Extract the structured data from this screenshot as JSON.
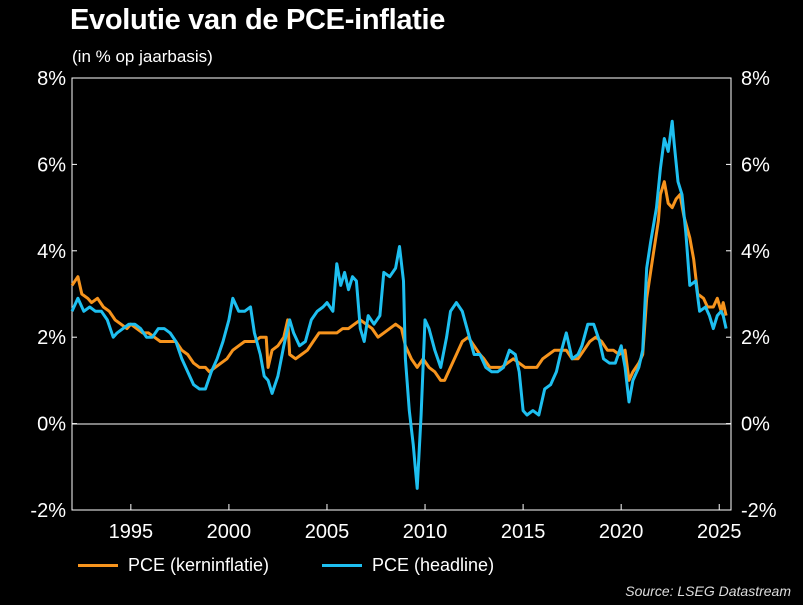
{
  "title": "Evolutie van de PCE-inflatie",
  "subtitle": "(in % op jaarbasis)",
  "source": "Source: LSEG Datastream",
  "colors": {
    "core": "#F7941D",
    "headline": "#1EBFF0",
    "background": "#000000",
    "zero_line": "#FFFFFF"
  },
  "chart_data": {
    "type": "line",
    "title": "Evolutie van de PCE-inflatie",
    "ylabel_left": "",
    "ylabel_right": "",
    "ylim": [
      -2,
      8
    ],
    "xlim": [
      1992.0,
      2025.6
    ],
    "y_ticks": [
      -2,
      0,
      2,
      4,
      6,
      8
    ],
    "y_tick_labels": [
      "-2%",
      "0%",
      "2%",
      "4%",
      "6%",
      "8%"
    ],
    "x_ticks": [
      1995,
      2000,
      2005,
      2010,
      2015,
      2020,
      2025
    ],
    "x_tick_labels": [
      "1995",
      "2000",
      "2005",
      "2010",
      "2015",
      "2020",
      "2025"
    ],
    "legend_position": "bottom-left",
    "grid": false,
    "series": [
      {
        "name": "PCE (kerninflatie)",
        "color": "#F7941D",
        "points": [
          [
            1992.0,
            3.2
          ],
          [
            1992.3,
            3.4
          ],
          [
            1992.5,
            3.0
          ],
          [
            1992.8,
            2.9
          ],
          [
            1993.0,
            2.8
          ],
          [
            1993.3,
            2.9
          ],
          [
            1993.6,
            2.7
          ],
          [
            1993.9,
            2.6
          ],
          [
            1994.2,
            2.4
          ],
          [
            1994.5,
            2.3
          ],
          [
            1994.8,
            2.2
          ],
          [
            1995.0,
            2.3
          ],
          [
            1995.3,
            2.2
          ],
          [
            1995.6,
            2.1
          ],
          [
            1995.9,
            2.1
          ],
          [
            1996.2,
            2.0
          ],
          [
            1996.5,
            1.9
          ],
          [
            1996.8,
            1.9
          ],
          [
            1997.0,
            1.9
          ],
          [
            1997.3,
            1.9
          ],
          [
            1997.6,
            1.7
          ],
          [
            1997.9,
            1.6
          ],
          [
            1998.2,
            1.4
          ],
          [
            1998.5,
            1.3
          ],
          [
            1998.8,
            1.3
          ],
          [
            1999.0,
            1.2
          ],
          [
            1999.3,
            1.3
          ],
          [
            1999.6,
            1.4
          ],
          [
            1999.9,
            1.5
          ],
          [
            2000.2,
            1.7
          ],
          [
            2000.5,
            1.8
          ],
          [
            2000.8,
            1.9
          ],
          [
            2001.0,
            1.9
          ],
          [
            2001.3,
            1.9
          ],
          [
            2001.6,
            2.0
          ],
          [
            2001.9,
            2.0
          ],
          [
            2002.0,
            1.3
          ],
          [
            2002.2,
            1.7
          ],
          [
            2002.5,
            1.8
          ],
          [
            2002.8,
            2.0
          ],
          [
            2003.0,
            2.4
          ],
          [
            2003.1,
            1.6
          ],
          [
            2003.4,
            1.5
          ],
          [
            2003.7,
            1.6
          ],
          [
            2004.0,
            1.7
          ],
          [
            2004.3,
            1.9
          ],
          [
            2004.6,
            2.1
          ],
          [
            2004.9,
            2.1
          ],
          [
            2005.2,
            2.1
          ],
          [
            2005.5,
            2.1
          ],
          [
            2005.8,
            2.2
          ],
          [
            2006.1,
            2.2
          ],
          [
            2006.4,
            2.3
          ],
          [
            2006.7,
            2.4
          ],
          [
            2007.0,
            2.3
          ],
          [
            2007.3,
            2.2
          ],
          [
            2007.6,
            2.0
          ],
          [
            2007.9,
            2.1
          ],
          [
            2008.2,
            2.2
          ],
          [
            2008.5,
            2.3
          ],
          [
            2008.8,
            2.2
          ],
          [
            2009.0,
            1.8
          ],
          [
            2009.3,
            1.5
          ],
          [
            2009.6,
            1.3
          ],
          [
            2009.9,
            1.5
          ],
          [
            2010.2,
            1.3
          ],
          [
            2010.5,
            1.2
          ],
          [
            2010.8,
            1.0
          ],
          [
            2011.0,
            1.0
          ],
          [
            2011.3,
            1.3
          ],
          [
            2011.6,
            1.6
          ],
          [
            2011.9,
            1.9
          ],
          [
            2012.2,
            2.0
          ],
          [
            2012.5,
            1.8
          ],
          [
            2012.8,
            1.6
          ],
          [
            2013.0,
            1.5
          ],
          [
            2013.3,
            1.3
          ],
          [
            2013.6,
            1.3
          ],
          [
            2013.9,
            1.3
          ],
          [
            2014.2,
            1.4
          ],
          [
            2014.5,
            1.5
          ],
          [
            2014.8,
            1.4
          ],
          [
            2015.1,
            1.3
          ],
          [
            2015.4,
            1.3
          ],
          [
            2015.7,
            1.3
          ],
          [
            2016.0,
            1.5
          ],
          [
            2016.3,
            1.6
          ],
          [
            2016.6,
            1.7
          ],
          [
            2016.9,
            1.7
          ],
          [
            2017.2,
            1.7
          ],
          [
            2017.5,
            1.5
          ],
          [
            2017.8,
            1.5
          ],
          [
            2018.1,
            1.7
          ],
          [
            2018.4,
            1.9
          ],
          [
            2018.7,
            2.0
          ],
          [
            2019.0,
            1.9
          ],
          [
            2019.3,
            1.7
          ],
          [
            2019.6,
            1.7
          ],
          [
            2019.9,
            1.6
          ],
          [
            2020.2,
            1.7
          ],
          [
            2020.4,
            1.0
          ],
          [
            2020.6,
            1.2
          ],
          [
            2020.9,
            1.4
          ],
          [
            2021.1,
            1.6
          ],
          [
            2021.3,
            2.9
          ],
          [
            2021.6,
            3.8
          ],
          [
            2021.9,
            4.7
          ],
          [
            2022.0,
            5.3
          ],
          [
            2022.2,
            5.6
          ],
          [
            2022.4,
            5.1
          ],
          [
            2022.6,
            5.0
          ],
          [
            2022.8,
            5.2
          ],
          [
            2023.0,
            5.3
          ],
          [
            2023.2,
            4.8
          ],
          [
            2023.5,
            4.3
          ],
          [
            2023.7,
            3.8
          ],
          [
            2023.9,
            3.0
          ],
          [
            2024.2,
            2.9
          ],
          [
            2024.4,
            2.7
          ],
          [
            2024.7,
            2.7
          ],
          [
            2024.9,
            2.9
          ],
          [
            2025.1,
            2.6
          ],
          [
            2025.2,
            2.8
          ],
          [
            2025.35,
            2.5
          ]
        ]
      },
      {
        "name": "PCE (headline)",
        "color": "#1EBFF0",
        "points": [
          [
            1992.0,
            2.6
          ],
          [
            1992.3,
            2.9
          ],
          [
            1992.6,
            2.6
          ],
          [
            1992.9,
            2.7
          ],
          [
            1993.2,
            2.6
          ],
          [
            1993.5,
            2.6
          ],
          [
            1993.8,
            2.4
          ],
          [
            1994.1,
            2.0
          ],
          [
            1994.3,
            2.1
          ],
          [
            1994.6,
            2.2
          ],
          [
            1994.9,
            2.3
          ],
          [
            1995.2,
            2.3
          ],
          [
            1995.5,
            2.2
          ],
          [
            1995.8,
            2.0
          ],
          [
            1996.1,
            2.0
          ],
          [
            1996.4,
            2.2
          ],
          [
            1996.7,
            2.2
          ],
          [
            1997.0,
            2.1
          ],
          [
            1997.3,
            1.9
          ],
          [
            1997.6,
            1.5
          ],
          [
            1997.9,
            1.2
          ],
          [
            1998.2,
            0.9
          ],
          [
            1998.5,
            0.8
          ],
          [
            1998.8,
            0.8
          ],
          [
            1999.1,
            1.2
          ],
          [
            1999.4,
            1.5
          ],
          [
            1999.7,
            1.9
          ],
          [
            2000.0,
            2.4
          ],
          [
            2000.2,
            2.9
          ],
          [
            2000.5,
            2.6
          ],
          [
            2000.8,
            2.6
          ],
          [
            2001.1,
            2.7
          ],
          [
            2001.3,
            2.1
          ],
          [
            2001.6,
            1.6
          ],
          [
            2001.8,
            1.1
          ],
          [
            2002.0,
            1.0
          ],
          [
            2002.2,
            0.7
          ],
          [
            2002.5,
            1.1
          ],
          [
            2002.8,
            1.8
          ],
          [
            2003.1,
            2.4
          ],
          [
            2003.3,
            2.1
          ],
          [
            2003.6,
            1.8
          ],
          [
            2003.9,
            1.9
          ],
          [
            2004.2,
            2.4
          ],
          [
            2004.5,
            2.6
          ],
          [
            2004.8,
            2.7
          ],
          [
            2005.0,
            2.8
          ],
          [
            2005.3,
            2.6
          ],
          [
            2005.5,
            3.7
          ],
          [
            2005.7,
            3.2
          ],
          [
            2005.9,
            3.5
          ],
          [
            2006.1,
            3.1
          ],
          [
            2006.3,
            3.4
          ],
          [
            2006.5,
            3.3
          ],
          [
            2006.7,
            2.2
          ],
          [
            2006.9,
            1.9
          ],
          [
            2007.1,
            2.5
          ],
          [
            2007.4,
            2.3
          ],
          [
            2007.7,
            2.5
          ],
          [
            2007.9,
            3.5
          ],
          [
            2008.2,
            3.4
          ],
          [
            2008.5,
            3.6
          ],
          [
            2008.7,
            4.1
          ],
          [
            2008.9,
            3.3
          ],
          [
            2009.0,
            1.5
          ],
          [
            2009.2,
            0.3
          ],
          [
            2009.4,
            -0.5
          ],
          [
            2009.5,
            -1.0
          ],
          [
            2009.6,
            -1.5
          ],
          [
            2009.8,
            0.2
          ],
          [
            2010.0,
            2.4
          ],
          [
            2010.2,
            2.2
          ],
          [
            2010.5,
            1.7
          ],
          [
            2010.8,
            1.3
          ],
          [
            2011.1,
            2.0
          ],
          [
            2011.3,
            2.6
          ],
          [
            2011.6,
            2.8
          ],
          [
            2011.9,
            2.6
          ],
          [
            2012.2,
            2.1
          ],
          [
            2012.5,
            1.6
          ],
          [
            2012.8,
            1.6
          ],
          [
            2013.1,
            1.3
          ],
          [
            2013.4,
            1.2
          ],
          [
            2013.7,
            1.2
          ],
          [
            2014.0,
            1.3
          ],
          [
            2014.3,
            1.7
          ],
          [
            2014.6,
            1.6
          ],
          [
            2014.8,
            1.2
          ],
          [
            2015.0,
            0.3
          ],
          [
            2015.2,
            0.2
          ],
          [
            2015.5,
            0.3
          ],
          [
            2015.8,
            0.2
          ],
          [
            2016.1,
            0.8
          ],
          [
            2016.4,
            0.9
          ],
          [
            2016.7,
            1.2
          ],
          [
            2016.9,
            1.6
          ],
          [
            2017.2,
            2.1
          ],
          [
            2017.5,
            1.5
          ],
          [
            2017.8,
            1.6
          ],
          [
            2018.0,
            1.8
          ],
          [
            2018.3,
            2.3
          ],
          [
            2018.6,
            2.3
          ],
          [
            2018.9,
            1.9
          ],
          [
            2019.1,
            1.5
          ],
          [
            2019.4,
            1.4
          ],
          [
            2019.7,
            1.4
          ],
          [
            2020.0,
            1.8
          ],
          [
            2020.2,
            1.3
          ],
          [
            2020.4,
            0.5
          ],
          [
            2020.6,
            1.0
          ],
          [
            2020.9,
            1.3
          ],
          [
            2021.1,
            1.7
          ],
          [
            2021.3,
            3.6
          ],
          [
            2021.5,
            4.2
          ],
          [
            2021.8,
            5.0
          ],
          [
            2022.0,
            5.9
          ],
          [
            2022.2,
            6.6
          ],
          [
            2022.4,
            6.3
          ],
          [
            2022.6,
            7.0
          ],
          [
            2022.7,
            6.5
          ],
          [
            2022.9,
            5.6
          ],
          [
            2023.1,
            5.3
          ],
          [
            2023.3,
            4.4
          ],
          [
            2023.5,
            3.2
          ],
          [
            2023.8,
            3.3
          ],
          [
            2024.0,
            2.6
          ],
          [
            2024.3,
            2.7
          ],
          [
            2024.5,
            2.5
          ],
          [
            2024.7,
            2.2
          ],
          [
            2024.9,
            2.5
          ],
          [
            2025.1,
            2.6
          ],
          [
            2025.2,
            2.5
          ],
          [
            2025.35,
            2.2
          ]
        ]
      }
    ]
  }
}
